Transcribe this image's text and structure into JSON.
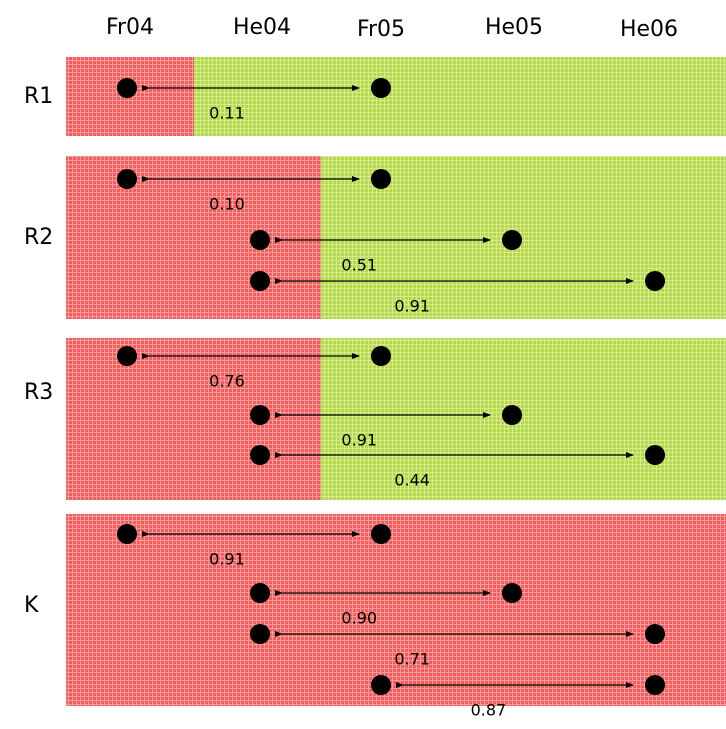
{
  "colors": {
    "red": "#ef5f5f",
    "green": "#b5d84e",
    "dot": "#000000",
    "arrow": "#000000"
  },
  "columns": [
    "Fr04",
    "He04",
    "Fr05",
    "He05",
    "He06"
  ],
  "rows": [
    {
      "label": "R1",
      "red_until_column": 0.5,
      "comparisons": [
        {
          "from": "Fr04",
          "to": "Fr05",
          "value": "0.11"
        }
      ]
    },
    {
      "label": "R2",
      "red_until_column": 1.5,
      "comparisons": [
        {
          "from": "Fr04",
          "to": "Fr05",
          "value": "0.10"
        },
        {
          "from": "He04",
          "to": "He05",
          "value": "0.51"
        },
        {
          "from": "He04",
          "to": "He06",
          "value": "0.91"
        }
      ]
    },
    {
      "label": "R3",
      "red_until_column": 1.5,
      "comparisons": [
        {
          "from": "Fr04",
          "to": "Fr05",
          "value": "0.76"
        },
        {
          "from": "He04",
          "to": "He05",
          "value": "0.91"
        },
        {
          "from": "He04",
          "to": "He06",
          "value": "0.44"
        }
      ]
    },
    {
      "label": "K",
      "red_until_column": 4.5,
      "comparisons": [
        {
          "from": "Fr04",
          "to": "Fr05",
          "value": "0.91"
        },
        {
          "from": "He04",
          "to": "He05",
          "value": "0.90"
        },
        {
          "from": "He04",
          "to": "He06",
          "value": "0.71"
        },
        {
          "from": "Fr05",
          "to": "He06",
          "value": "0.87"
        }
      ]
    }
  ]
}
